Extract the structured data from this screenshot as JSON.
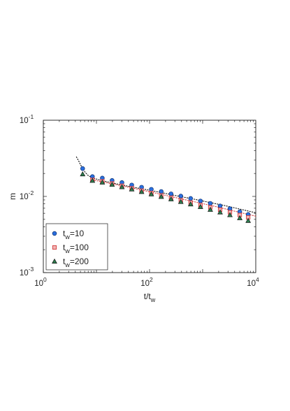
{
  "chart_data": {
    "type": "scatter",
    "xlabel": {
      "base": "t/t",
      "sub": "w"
    },
    "ylabel": "m",
    "xscale": "log",
    "yscale": "log",
    "xlim": [
      1,
      10000
    ],
    "ylim": [
      0.001,
      0.1
    ],
    "x_ticks": [
      {
        "base": "10",
        "exp": "0",
        "value": 1
      },
      {
        "base": "10",
        "exp": "2",
        "value": 100
      },
      {
        "base": "10",
        "exp": "4",
        "value": 10000
      }
    ],
    "y_ticks": [
      {
        "base": "10",
        "exp": "-3",
        "value": 0.001
      },
      {
        "base": "10",
        "exp": "-2",
        "value": 0.01
      },
      {
        "base": "10",
        "exp": "-1",
        "value": 0.1
      }
    ],
    "grid": false,
    "legend_position": "bottom-left",
    "series": [
      {
        "name": "t_w=10",
        "legend": {
          "base": "t",
          "sub": "w",
          "rest": "=10"
        },
        "marker": "circle",
        "color": "#2a6fe0",
        "x": [
          5.5,
          8.4,
          12.9,
          19.7,
          30.2,
          46.2,
          70.8,
          108,
          166,
          254,
          388,
          594,
          910,
          1393,
          2133,
          3265,
          5000,
          7200
        ],
        "y": [
          0.0232,
          0.0182,
          0.0174,
          0.0162,
          0.0152,
          0.0141,
          0.0132,
          0.0124,
          0.0116,
          0.0108,
          0.0101,
          0.0094,
          0.0087,
          0.0081,
          0.0075,
          0.0069,
          0.0063,
          0.0058
        ]
      },
      {
        "name": "t_w=100",
        "legend": {
          "base": "t",
          "sub": "w",
          "rest": "=100"
        },
        "marker": "square",
        "color": "#d23a3a",
        "x": [
          8.4,
          12.9,
          19.7,
          30.2,
          46.2,
          70.8,
          108,
          166,
          254,
          388,
          594,
          910,
          1393,
          2133,
          3265,
          5000,
          7200
        ],
        "y": [
          0.0165,
          0.0158,
          0.0148,
          0.0138,
          0.0128,
          0.0119,
          0.0111,
          0.0103,
          0.0096,
          0.0089,
          0.0083,
          0.0077,
          0.0072,
          0.0067,
          0.0062,
          0.0057,
          0.0053
        ]
      },
      {
        "name": "t_w=200",
        "legend": {
          "base": "t",
          "sub": "w",
          "rest": "=200"
        },
        "marker": "triangle",
        "color": "#2e7d4f",
        "x": [
          5.5,
          8.4,
          12.9,
          19.7,
          30.2,
          46.2,
          70.8,
          108,
          166,
          254,
          388,
          594,
          910,
          1393,
          2133,
          3265,
          5000,
          7200
        ],
        "y": [
          0.0196,
          0.0161,
          0.0153,
          0.0143,
          0.0133,
          0.0124,
          0.0115,
          0.0107,
          0.0099,
          0.0092,
          0.0085,
          0.0079,
          0.0073,
          0.0067,
          0.0062,
          0.0057,
          0.0052,
          0.0048
        ]
      }
    ],
    "fit_lines": [
      {
        "style": "dotted",
        "color": "#111111",
        "x": [
          4.2,
          4.6,
          5.0,
          5.5,
          6.2,
          7.0,
          8.4,
          12,
          20,
          40,
          80,
          160,
          320,
          640,
          1280,
          2560,
          5120,
          10000
        ],
        "y": [
          0.033,
          0.0295,
          0.0262,
          0.0232,
          0.0205,
          0.0188,
          0.0175,
          0.0163,
          0.015,
          0.0136,
          0.0124,
          0.0113,
          0.0102,
          0.0093,
          0.0084,
          0.0076,
          0.0068,
          0.0061
        ]
      },
      {
        "style": "dotted",
        "color": "#d23a3a",
        "x": [
          8.4,
          20,
          50,
          120,
          300,
          700,
          1700,
          4000,
          10000
        ],
        "y": [
          0.0165,
          0.0146,
          0.0128,
          0.0112,
          0.0097,
          0.0085,
          0.0074,
          0.0064,
          0.0055
        ]
      }
    ]
  }
}
